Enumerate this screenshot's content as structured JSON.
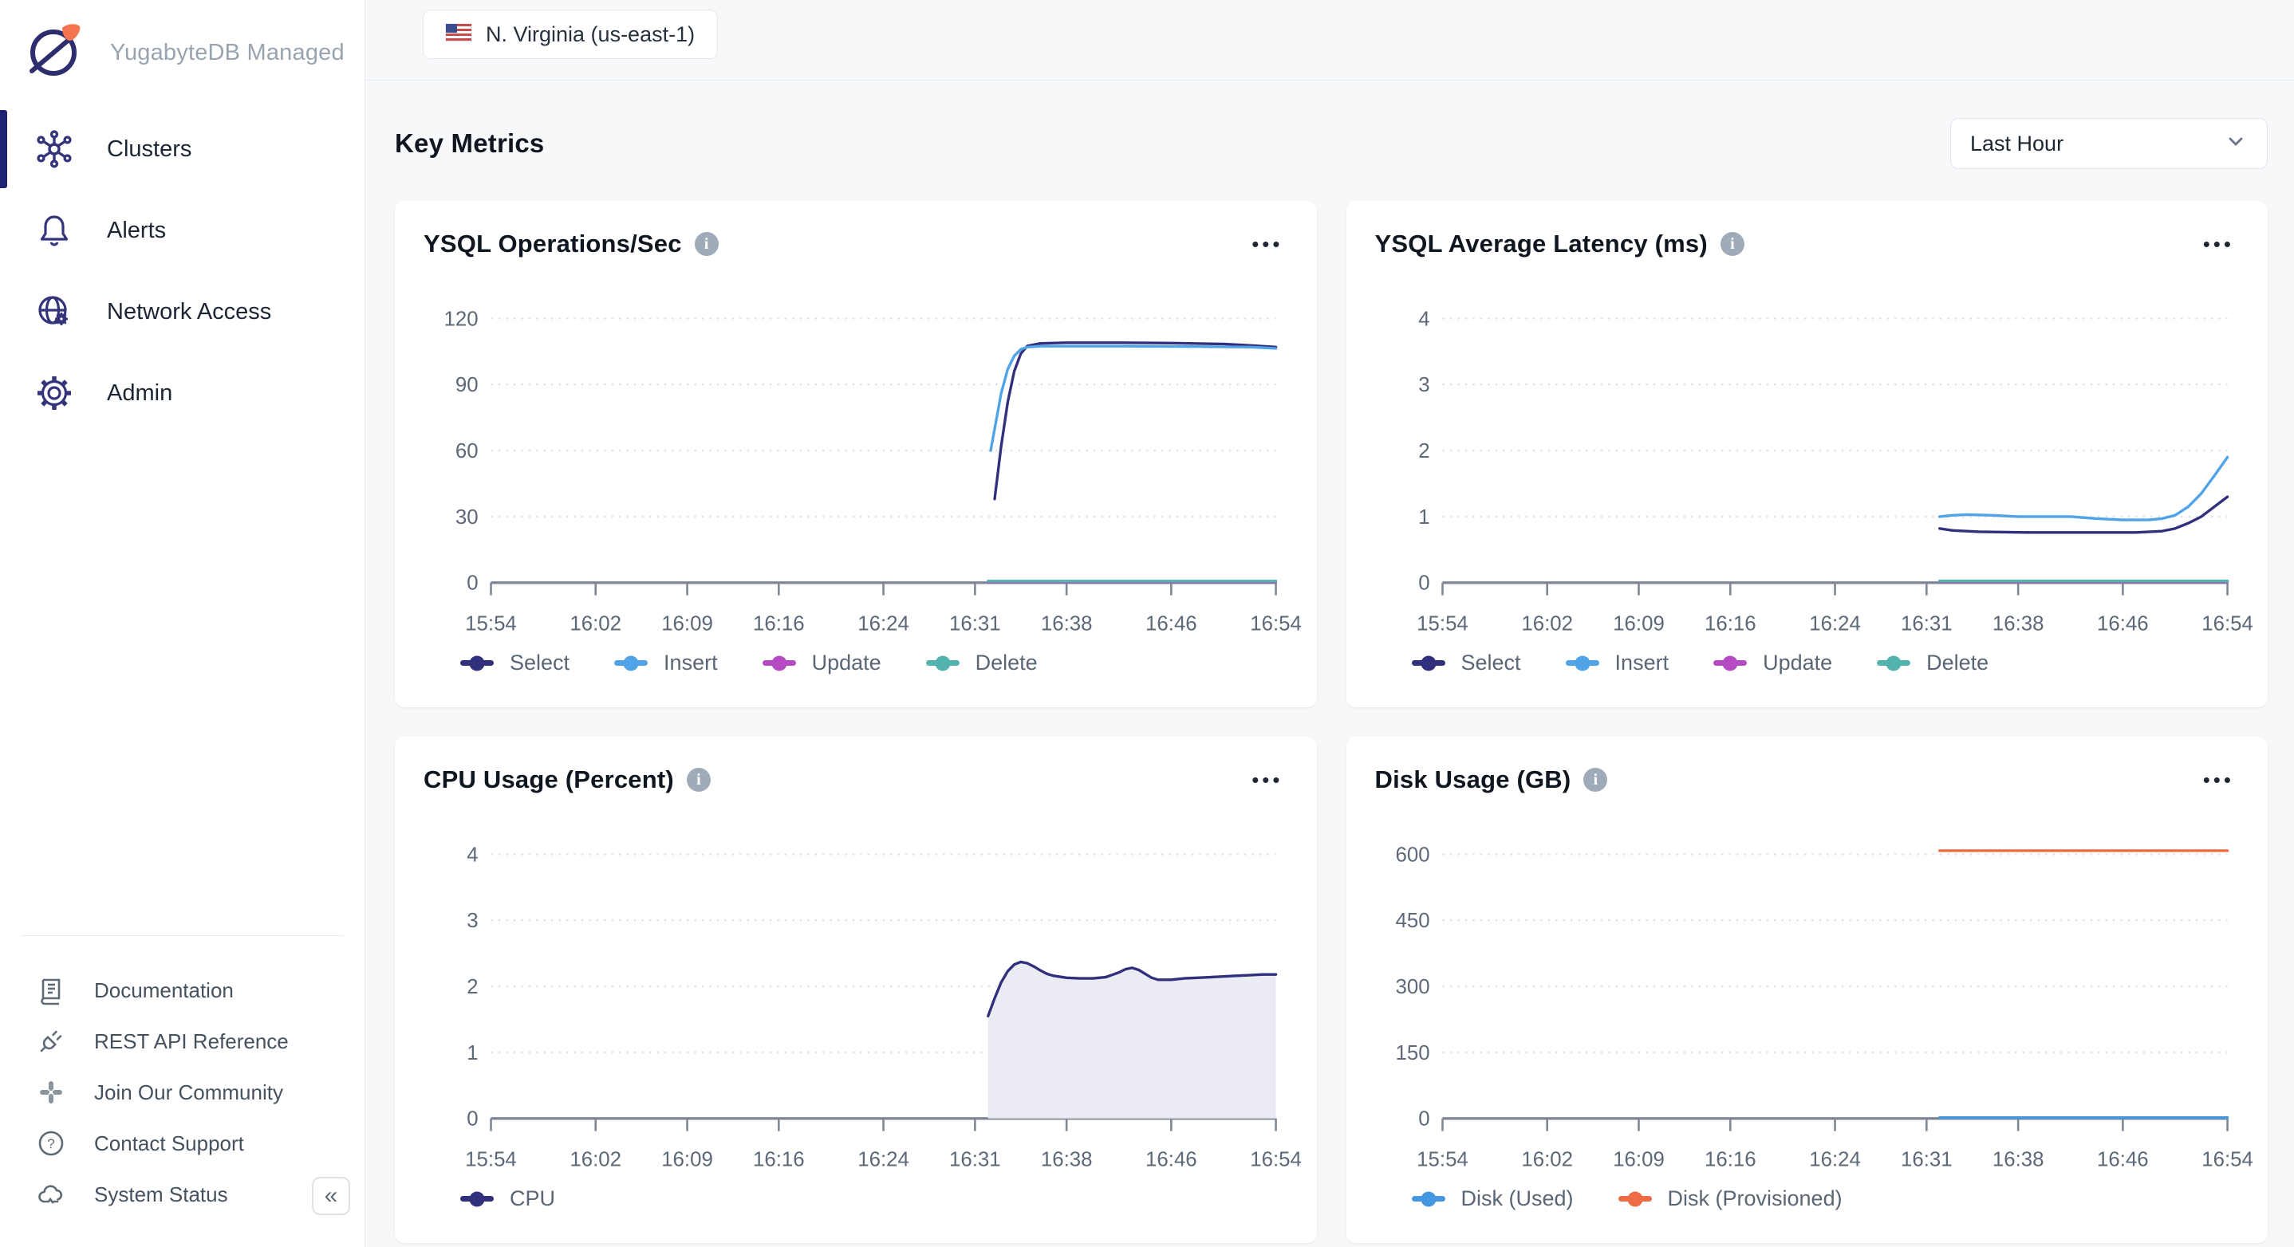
{
  "app": {
    "brand": "YugabyteDB Managed"
  },
  "sidebar": {
    "nav": [
      {
        "label": "Clusters",
        "icon": "cluster-icon",
        "active": true
      },
      {
        "label": "Alerts",
        "icon": "bell-icon",
        "active": false
      },
      {
        "label": "Network Access",
        "icon": "globe-gear-icon",
        "active": false
      },
      {
        "label": "Admin",
        "icon": "gear-icon",
        "active": false
      }
    ],
    "utility": [
      {
        "label": "Documentation",
        "icon": "book-icon"
      },
      {
        "label": "REST API Reference",
        "icon": "plug-icon"
      },
      {
        "label": "Join Our Community",
        "icon": "slack-icon"
      },
      {
        "label": "Contact Support",
        "icon": "question-icon"
      },
      {
        "label": "System Status",
        "icon": "cloud-icon"
      }
    ],
    "collapse_glyph": "«"
  },
  "topbar": {
    "region": "N. Virginia (us-east-1)"
  },
  "header": {
    "title": "Key Metrics",
    "time_range": "Last Hour"
  },
  "ui": {
    "menu_glyph": "•••"
  },
  "colors": {
    "select": "#30307c",
    "insert": "#4fa3e6",
    "update": "#b44bc2",
    "delete": "#52b3ae",
    "cpu": "#30307c",
    "cpu_fill": "#ebebf4",
    "disk_used": "#4598e0",
    "disk_provisioned": "#ee6c45",
    "accent_navy": "#1f2171",
    "brand_orange": "#f4754f"
  },
  "chart_data": [
    {
      "type": "line",
      "title": "YSQL Operations/Sec",
      "ylim": [
        0,
        126
      ],
      "yticks": [
        0,
        30,
        60,
        90,
        120
      ],
      "x_domain_minutes": [
        0,
        60
      ],
      "xtick_minutes": [
        0,
        8,
        15,
        22,
        30,
        37,
        44,
        52,
        60
      ],
      "xtick_labels": [
        "15:54",
        "16:02",
        "16:09",
        "16:16",
        "16:24",
        "16:31",
        "16:38",
        "16:46",
        "16:54"
      ],
      "grid": "dotted-horizontal",
      "legend_position": "bottom",
      "series": [
        {
          "name": "Update",
          "color": "#b44bc2",
          "points": [
            [
              38,
              0.4
            ],
            [
              60,
              0.4
            ]
          ]
        },
        {
          "name": "Delete",
          "color": "#52b3ae",
          "points": [
            [
              38,
              0.7
            ],
            [
              60,
              0.7
            ]
          ]
        },
        {
          "name": "Select",
          "color": "#30307c",
          "points": [
            [
              38.5,
              38
            ],
            [
              39,
              62
            ],
            [
              39.5,
              82
            ],
            [
              40,
              96
            ],
            [
              40.5,
              104
            ],
            [
              41,
              107.5
            ],
            [
              42,
              108.7
            ],
            [
              44,
              109
            ],
            [
              48,
              109
            ],
            [
              52,
              108.8
            ],
            [
              56,
              108.4
            ],
            [
              58,
              107.8
            ],
            [
              60,
              107
            ]
          ]
        },
        {
          "name": "Insert",
          "color": "#4fa3e6",
          "points": [
            [
              38.2,
              60
            ],
            [
              39,
              86
            ],
            [
              39.5,
              97
            ],
            [
              40,
              103
            ],
            [
              40.5,
              106
            ],
            [
              41,
              107
            ],
            [
              42,
              107.4
            ],
            [
              48,
              107.4
            ],
            [
              54,
              107.2
            ],
            [
              58,
              107
            ],
            [
              60,
              106.4
            ]
          ]
        }
      ],
      "legend_order": [
        "Select",
        "Insert",
        "Update",
        "Delete"
      ]
    },
    {
      "type": "line",
      "title": "YSQL Average Latency (ms)",
      "ylim": [
        0,
        4.2
      ],
      "yticks": [
        0,
        1,
        2,
        3,
        4
      ],
      "x_domain_minutes": [
        0,
        60
      ],
      "xtick_minutes": [
        0,
        8,
        15,
        22,
        30,
        37,
        44,
        52,
        60
      ],
      "xtick_labels": [
        "15:54",
        "16:02",
        "16:09",
        "16:16",
        "16:24",
        "16:31",
        "16:38",
        "16:46",
        "16:54"
      ],
      "grid": "dotted-horizontal",
      "legend_position": "bottom",
      "series": [
        {
          "name": "Update",
          "color": "#b44bc2",
          "points": [
            [
              38,
              0.015
            ],
            [
              60,
              0.015
            ]
          ]
        },
        {
          "name": "Delete",
          "color": "#52b3ae",
          "points": [
            [
              38,
              0.025
            ],
            [
              60,
              0.025
            ]
          ]
        },
        {
          "name": "Select",
          "color": "#30307c",
          "points": [
            [
              38,
              0.82
            ],
            [
              39,
              0.79
            ],
            [
              41,
              0.77
            ],
            [
              45,
              0.76
            ],
            [
              50,
              0.76
            ],
            [
              53,
              0.76
            ],
            [
              55,
              0.78
            ],
            [
              56,
              0.82
            ],
            [
              57,
              0.9
            ],
            [
              58,
              1.0
            ],
            [
              59,
              1.15
            ],
            [
              60,
              1.3
            ]
          ]
        },
        {
          "name": "Insert",
          "color": "#4fa3e6",
          "points": [
            [
              38,
              1.0
            ],
            [
              39,
              1.02
            ],
            [
              40,
              1.03
            ],
            [
              42,
              1.02
            ],
            [
              44,
              1.0
            ],
            [
              46,
              1.0
            ],
            [
              48,
              1.0
            ],
            [
              50,
              0.97
            ],
            [
              52,
              0.95
            ],
            [
              54,
              0.95
            ],
            [
              55,
              0.97
            ],
            [
              56,
              1.02
            ],
            [
              57,
              1.15
            ],
            [
              58,
              1.35
            ],
            [
              59,
              1.62
            ],
            [
              60,
              1.9
            ]
          ]
        }
      ],
      "legend_order": [
        "Select",
        "Insert",
        "Update",
        "Delete"
      ]
    },
    {
      "type": "area",
      "title": "CPU Usage (Percent)",
      "ylim": [
        0,
        4.2
      ],
      "yticks": [
        0,
        1,
        2,
        3,
        4
      ],
      "x_domain_minutes": [
        0,
        60
      ],
      "xtick_minutes": [
        0,
        8,
        15,
        22,
        30,
        37,
        44,
        52,
        60
      ],
      "xtick_labels": [
        "15:54",
        "16:02",
        "16:09",
        "16:16",
        "16:24",
        "16:31",
        "16:38",
        "16:46",
        "16:54"
      ],
      "grid": "dotted-horizontal",
      "legend_position": "bottom",
      "series": [
        {
          "name": "CPU",
          "color": "#30307c",
          "fill": "#ebebf4",
          "points": [
            [
              38,
              1.55
            ],
            [
              38.5,
              1.82
            ],
            [
              39,
              2.06
            ],
            [
              39.5,
              2.23
            ],
            [
              40,
              2.33
            ],
            [
              40.5,
              2.37
            ],
            [
              41,
              2.35
            ],
            [
              41.5,
              2.3
            ],
            [
              42,
              2.24
            ],
            [
              42.5,
              2.19
            ],
            [
              43,
              2.16
            ],
            [
              44,
              2.13
            ],
            [
              45,
              2.12
            ],
            [
              46,
              2.12
            ],
            [
              47,
              2.14
            ],
            [
              48,
              2.21
            ],
            [
              48.5,
              2.26
            ],
            [
              49,
              2.28
            ],
            [
              49.5,
              2.25
            ],
            [
              50,
              2.19
            ],
            [
              50.5,
              2.13
            ],
            [
              51,
              2.1
            ],
            [
              52,
              2.1
            ],
            [
              53,
              2.12
            ],
            [
              54,
              2.13
            ],
            [
              55,
              2.14
            ],
            [
              56,
              2.15
            ],
            [
              57,
              2.16
            ],
            [
              58,
              2.17
            ],
            [
              59,
              2.18
            ],
            [
              60,
              2.18
            ]
          ]
        }
      ],
      "legend_order": [
        "CPU"
      ]
    },
    {
      "type": "line",
      "title": "Disk Usage (GB)",
      "ylim": [
        0,
        630
      ],
      "yticks": [
        0,
        150,
        300,
        450,
        600
      ],
      "x_domain_minutes": [
        0,
        60
      ],
      "xtick_minutes": [
        0,
        8,
        15,
        22,
        30,
        37,
        44,
        52,
        60
      ],
      "xtick_labels": [
        "15:54",
        "16:02",
        "16:09",
        "16:16",
        "16:24",
        "16:31",
        "16:38",
        "16:46",
        "16:54"
      ],
      "grid": "dotted-horizontal",
      "legend_position": "bottom",
      "series": [
        {
          "name": "Disk (Used)",
          "color": "#4598e0",
          "points": [
            [
              38,
              2
            ],
            [
              60,
              2
            ]
          ]
        },
        {
          "name": "Disk (Provisioned)",
          "color": "#ee6c45",
          "points": [
            [
              38,
              608
            ],
            [
              60,
              608
            ]
          ]
        }
      ],
      "legend_order": [
        "Disk (Used)",
        "Disk (Provisioned)"
      ]
    }
  ]
}
